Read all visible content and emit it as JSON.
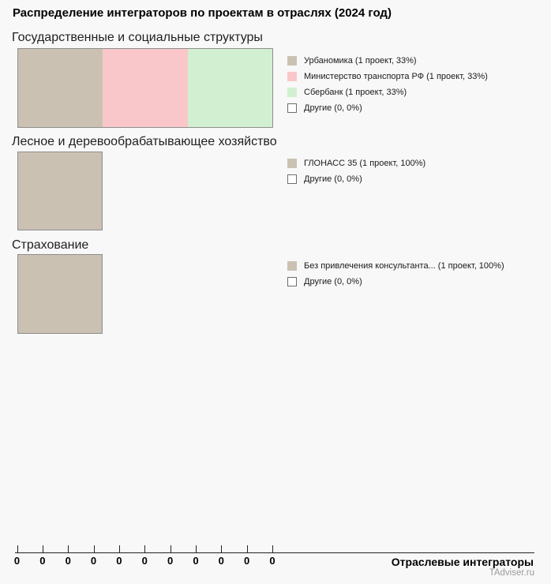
{
  "title": "Распределение интеграторов по проектам в отраслях (2024 год)",
  "source": "TAdviser.ru",
  "axis": {
    "label": "Отраслевые интеграторы",
    "tick_labels": [
      "0",
      "0",
      "0",
      "0",
      "0",
      "0",
      "0",
      "0",
      "0",
      "0",
      "0"
    ]
  },
  "colors": {
    "tan": "#cbc1b3",
    "pink": "#f9c7c9",
    "green": "#d2efd1",
    "other": "#ffffff",
    "bar_border": "#8e8e8e",
    "background": "#f8f8f8"
  },
  "sections": [
    {
      "title": "Государственные и социальные структуры",
      "legend": [
        {
          "label": "Урбаномика (1 проект, 33%)",
          "color": "#cbc1b3"
        },
        {
          "label": "Министерство транспорта РФ (1 проект, 33%)",
          "color": "#f9c7c9"
        },
        {
          "label": "Сбербанк (1 проект, 33%)",
          "color": "#d2efd1"
        },
        {
          "label": "Другие (0, 0%)",
          "color": "#ffffff"
        }
      ]
    },
    {
      "title": "Лесное и деревообрабатывающее хозяйство",
      "legend": [
        {
          "label": "ГЛОНАСС 35 (1 проект, 100%)",
          "color": "#cbc1b3"
        },
        {
          "label": "Другие (0, 0%)",
          "color": "#ffffff"
        }
      ]
    },
    {
      "title": "Страхование",
      "legend": [
        {
          "label": "Без привлечения консультанта... (1 проект, 100%)",
          "color": "#cbc1b3"
        },
        {
          "label": "Другие (0, 0%)",
          "color": "#ffffff"
        }
      ]
    }
  ],
  "chart_data": {
    "type": "bar",
    "orientation": "horizontal",
    "stacked": true,
    "title": "Распределение интеграторов по проектам в отраслях (2024 год)",
    "xlabel": "Отраслевые интеграторы",
    "x_tick_labels": [
      "0",
      "0",
      "0",
      "0",
      "0",
      "0",
      "0",
      "0",
      "0",
      "0",
      "0"
    ],
    "legend_position": "right",
    "grid": false,
    "groups": [
      {
        "category": "Государственные и социальные структуры",
        "segments": [
          {
            "name": "Урбаномика",
            "projects": 1,
            "percent": 33,
            "color": "#cbc1b3"
          },
          {
            "name": "Министерство транспорта РФ",
            "projects": 1,
            "percent": 33,
            "color": "#f9c7c9"
          },
          {
            "name": "Сбербанк",
            "projects": 1,
            "percent": 33,
            "color": "#d2efd1"
          },
          {
            "name": "Другие",
            "projects": 0,
            "percent": 0,
            "color": "#ffffff"
          }
        ]
      },
      {
        "category": "Лесное и деревообрабатывающее хозяйство",
        "segments": [
          {
            "name": "ГЛОНАСС 35",
            "projects": 1,
            "percent": 100,
            "color": "#cbc1b3"
          },
          {
            "name": "Другие",
            "projects": 0,
            "percent": 0,
            "color": "#ffffff"
          }
        ]
      },
      {
        "category": "Страхование",
        "segments": [
          {
            "name": "Без привлечения консультанта...",
            "projects": 1,
            "percent": 100,
            "color": "#cbc1b3"
          },
          {
            "name": "Другие",
            "projects": 0,
            "percent": 0,
            "color": "#ffffff"
          }
        ]
      }
    ],
    "source": "TAdviser.ru"
  }
}
